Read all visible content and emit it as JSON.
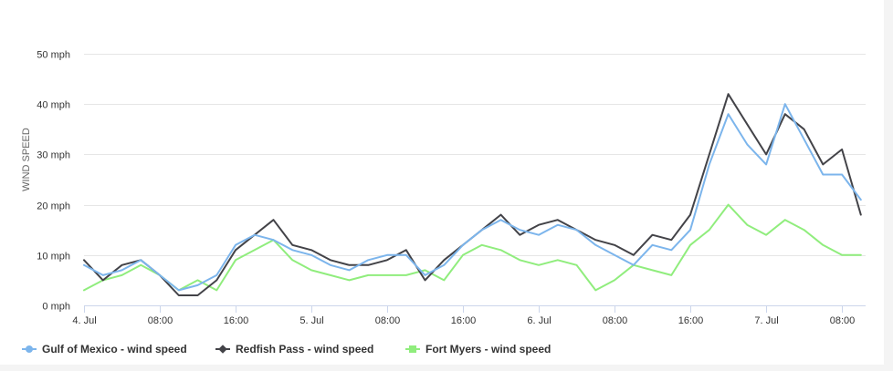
{
  "chart_data": {
    "type": "line",
    "title": "",
    "xlabel": "",
    "ylabel": "WIND SPEED",
    "y_unit": "mph",
    "ylim": [
      0,
      50
    ],
    "y_ticks": [
      0,
      10,
      20,
      30,
      40,
      50
    ],
    "y_tick_labels": [
      "0 mph",
      "10 mph",
      "20 mph",
      "30 mph",
      "40 mph",
      "50 mph"
    ],
    "x_range": [
      "2019-07-04T00:00",
      "2019-07-07T10:30"
    ],
    "x_ticks": [
      "2019-07-04T00:00",
      "2019-07-04T08:00",
      "2019-07-04T16:00",
      "2019-07-05T00:00",
      "2019-07-05T08:00",
      "2019-07-05T16:00",
      "2019-07-06T00:00",
      "2019-07-06T08:00",
      "2019-07-06T16:00",
      "2019-07-07T00:00",
      "2019-07-07T08:00"
    ],
    "x_tick_labels": [
      "4. Jul",
      "08:00",
      "16:00",
      "5. Jul",
      "08:00",
      "16:00",
      "6. Jul",
      "08:00",
      "16:00",
      "7. Jul",
      "08:00"
    ],
    "grid": true,
    "legend_position": "bottom-left",
    "x": [
      "2019-07-04T00:00",
      "2019-07-04T02:00",
      "2019-07-04T04:00",
      "2019-07-04T06:00",
      "2019-07-04T08:00",
      "2019-07-04T10:00",
      "2019-07-04T12:00",
      "2019-07-04T14:00",
      "2019-07-04T16:00",
      "2019-07-04T18:00",
      "2019-07-04T20:00",
      "2019-07-04T22:00",
      "2019-07-05T00:00",
      "2019-07-05T02:00",
      "2019-07-05T04:00",
      "2019-07-05T06:00",
      "2019-07-05T08:00",
      "2019-07-05T10:00",
      "2019-07-05T12:00",
      "2019-07-05T14:00",
      "2019-07-05T16:00",
      "2019-07-05T18:00",
      "2019-07-05T20:00",
      "2019-07-05T22:00",
      "2019-07-06T00:00",
      "2019-07-06T02:00",
      "2019-07-06T04:00",
      "2019-07-06T06:00",
      "2019-07-06T08:00",
      "2019-07-06T10:00",
      "2019-07-06T12:00",
      "2019-07-06T14:00",
      "2019-07-06T16:00",
      "2019-07-06T18:00",
      "2019-07-06T20:00",
      "2019-07-06T22:00",
      "2019-07-07T00:00",
      "2019-07-07T02:00",
      "2019-07-07T04:00",
      "2019-07-07T06:00",
      "2019-07-07T08:00",
      "2019-07-07T10:00"
    ],
    "series": [
      {
        "name": "Gulf of Mexico - wind speed",
        "color": "#7cb5ec",
        "marker": "circle",
        "values": [
          8,
          6,
          7,
          9,
          6,
          3,
          4,
          6,
          12,
          14,
          13,
          11,
          10,
          8,
          7,
          9,
          10,
          10,
          6,
          8,
          12,
          15,
          17,
          15,
          14,
          16,
          15,
          12,
          10,
          8,
          12,
          11,
          15,
          28,
          38,
          32,
          28,
          40,
          33,
          26,
          26,
          21
        ]
      },
      {
        "name": "Redfish Pass - wind speed",
        "color": "#434348",
        "marker": "diamond",
        "values": [
          9,
          5,
          8,
          9,
          6,
          2,
          2,
          5,
          11,
          14,
          17,
          12,
          11,
          9,
          8,
          8,
          9,
          11,
          5,
          9,
          12,
          15,
          18,
          14,
          16,
          17,
          15,
          13,
          12,
          10,
          14,
          13,
          18,
          30,
          42,
          36,
          30,
          38,
          35,
          28,
          31,
          18
        ]
      },
      {
        "name": "Fort Myers - wind speed",
        "color": "#90ed7d",
        "marker": "square",
        "values": [
          3,
          5,
          6,
          8,
          6,
          3,
          5,
          3,
          9,
          11,
          13,
          9,
          7,
          6,
          5,
          6,
          6,
          6,
          7,
          5,
          10,
          12,
          11,
          9,
          8,
          9,
          8,
          3,
          5,
          8,
          7,
          6,
          12,
          15,
          20,
          16,
          14,
          17,
          15,
          12,
          10,
          10
        ]
      }
    ]
  }
}
